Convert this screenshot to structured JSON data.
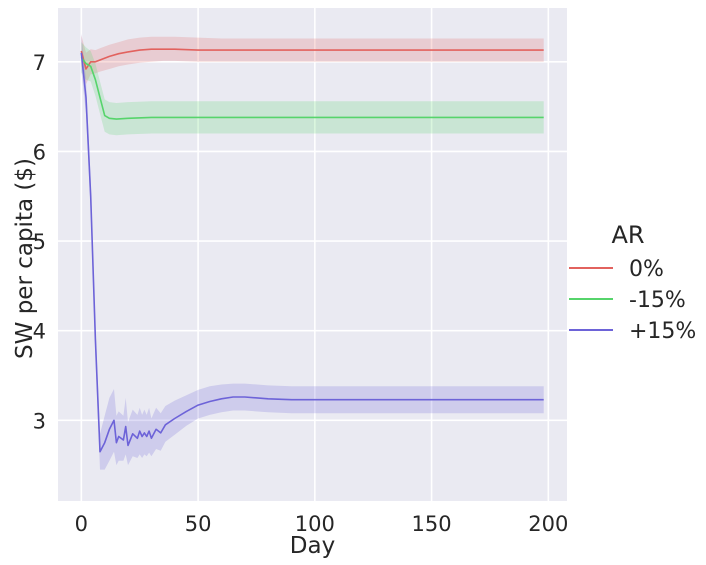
{
  "chart_data": {
    "type": "line",
    "xlabel": "Day",
    "ylabel": "SW per capita ($)",
    "xlim": [
      -10,
      208
    ],
    "ylim": [
      2.1,
      7.6
    ],
    "xticks": [
      0,
      50,
      100,
      150,
      200
    ],
    "yticks": [
      3,
      4,
      5,
      6,
      7
    ],
    "xtick_labels": [
      "0",
      "50",
      "100",
      "150",
      "200"
    ],
    "ytick_labels": [
      "3",
      "4",
      "5",
      "6",
      "7"
    ],
    "grid": true,
    "legend": {
      "title": "AR",
      "placement": "right"
    },
    "series": [
      {
        "name": "0%",
        "color": "#e2625e",
        "x": [
          0,
          2,
          4,
          6,
          8,
          12,
          16,
          20,
          25,
          30,
          35,
          40,
          50,
          60,
          80,
          100,
          120,
          150,
          180,
          198
        ],
        "y": [
          7.12,
          6.92,
          7.0,
          7.0,
          7.02,
          7.06,
          7.09,
          7.11,
          7.13,
          7.14,
          7.14,
          7.14,
          7.13,
          7.13,
          7.13,
          7.13,
          7.13,
          7.13,
          7.13,
          7.13
        ],
        "lower": [
          6.95,
          6.75,
          6.86,
          6.87,
          6.89,
          6.92,
          6.95,
          6.97,
          6.99,
          7.0,
          7.01,
          7.01,
          7.0,
          7.0,
          7.0,
          7.0,
          7.0,
          7.0,
          7.0,
          7.0
        ],
        "upper": [
          7.3,
          7.1,
          7.14,
          7.13,
          7.15,
          7.19,
          7.22,
          7.25,
          7.27,
          7.28,
          7.28,
          7.28,
          7.27,
          7.26,
          7.26,
          7.26,
          7.26,
          7.26,
          7.26,
          7.26
        ]
      },
      {
        "name": "-15%",
        "color": "#56d46b",
        "x": [
          0,
          2,
          4,
          6,
          8,
          10,
          12,
          15,
          20,
          30,
          50,
          100,
          150,
          198
        ],
        "y": [
          7.05,
          6.98,
          6.95,
          6.8,
          6.6,
          6.4,
          6.37,
          6.36,
          6.37,
          6.38,
          6.38,
          6.38,
          6.38,
          6.38
        ],
        "lower": [
          6.88,
          6.8,
          6.78,
          6.62,
          6.42,
          6.22,
          6.19,
          6.18,
          6.19,
          6.2,
          6.2,
          6.2,
          6.2,
          6.2
        ],
        "upper": [
          7.22,
          7.16,
          7.12,
          6.98,
          6.78,
          6.58,
          6.55,
          6.54,
          6.55,
          6.56,
          6.56,
          6.56,
          6.56,
          6.56
        ]
      },
      {
        "name": "+15%",
        "color": "#6d63d8",
        "x": [
          0,
          2,
          4,
          6,
          8,
          10,
          12,
          14,
          15,
          16,
          18,
          19,
          20,
          22,
          24,
          25,
          26,
          27,
          28,
          29,
          30,
          32,
          34,
          36,
          40,
          45,
          50,
          55,
          60,
          65,
          70,
          80,
          90,
          100,
          120,
          150,
          180,
          198
        ],
        "y": [
          7.1,
          6.6,
          5.5,
          3.9,
          2.65,
          2.75,
          2.9,
          3.0,
          2.75,
          2.82,
          2.78,
          2.93,
          2.72,
          2.85,
          2.8,
          2.88,
          2.82,
          2.86,
          2.82,
          2.88,
          2.8,
          2.9,
          2.86,
          2.95,
          3.02,
          3.1,
          3.17,
          3.21,
          3.24,
          3.26,
          3.26,
          3.24,
          3.23,
          3.23,
          3.23,
          3.23,
          3.23,
          3.23
        ],
        "lower": [
          6.9,
          6.42,
          5.32,
          3.72,
          2.45,
          2.45,
          2.55,
          2.65,
          2.5,
          2.55,
          2.55,
          2.62,
          2.5,
          2.6,
          2.58,
          2.62,
          2.58,
          2.62,
          2.6,
          2.64,
          2.6,
          2.68,
          2.66,
          2.76,
          2.84,
          2.94,
          3.02,
          3.06,
          3.09,
          3.11,
          3.11,
          3.09,
          3.08,
          3.08,
          3.08,
          3.08,
          3.08,
          3.08
        ],
        "upper": [
          7.32,
          6.8,
          5.68,
          4.08,
          2.85,
          3.05,
          3.25,
          3.35,
          3.05,
          3.1,
          3.05,
          3.25,
          2.98,
          3.12,
          3.06,
          3.14,
          3.06,
          3.12,
          3.06,
          3.14,
          3.02,
          3.14,
          3.08,
          3.16,
          3.22,
          3.28,
          3.34,
          3.38,
          3.4,
          3.41,
          3.41,
          3.39,
          3.38,
          3.38,
          3.38,
          3.38,
          3.38,
          3.38
        ]
      }
    ]
  }
}
